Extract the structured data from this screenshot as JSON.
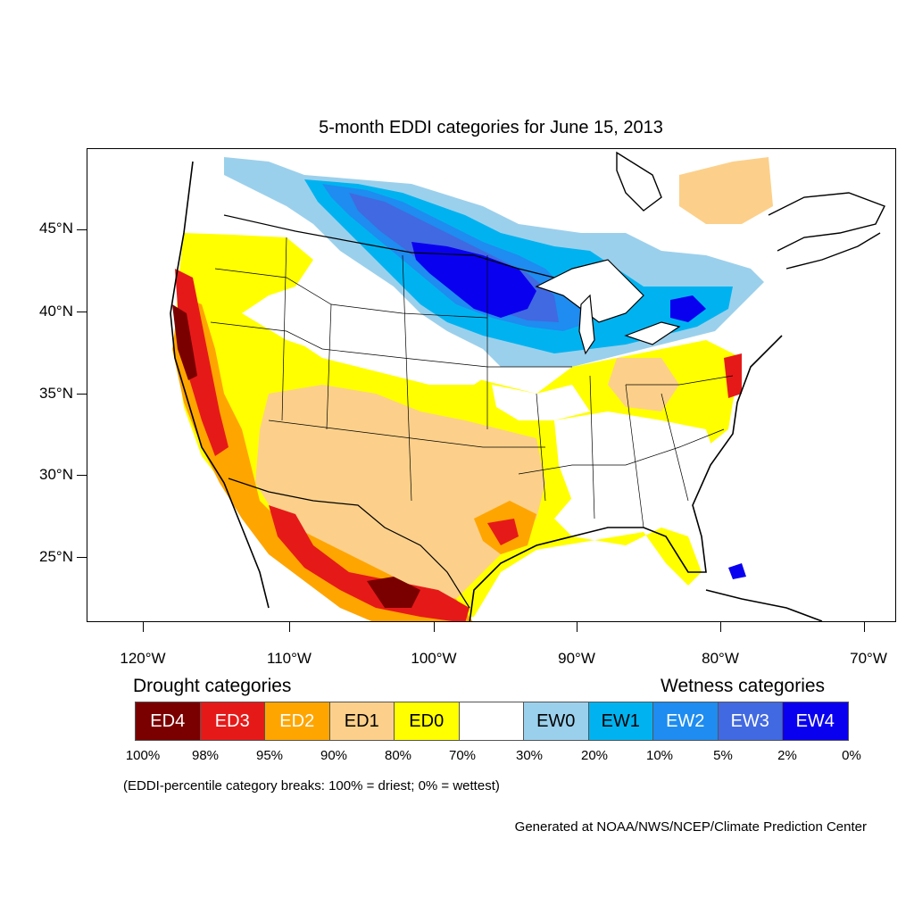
{
  "title": "5-month EDDI categories for June 15, 2013",
  "lat_labels": [
    "45°N",
    "40°N",
    "35°N",
    "30°N",
    "25°N"
  ],
  "lon_labels": [
    "120°W",
    "110°W",
    "100°W",
    "90°W",
    "80°W",
    "70°W"
  ],
  "legend": {
    "drought_heading": "Drought categories",
    "wetness_heading": "Wetness categories",
    "categories": [
      {
        "label": "ED4",
        "color": "#7a0000",
        "text_color": "#ffffff"
      },
      {
        "label": "ED3",
        "color": "#e61919",
        "text_color": "#ffffff"
      },
      {
        "label": "ED2",
        "color": "#ffa500",
        "text_color": "#ffffff"
      },
      {
        "label": "ED1",
        "color": "#fcd08a",
        "text_color": "#000000"
      },
      {
        "label": "ED0",
        "color": "#ffff00",
        "text_color": "#000000"
      },
      {
        "label": "",
        "color": "#ffffff",
        "text_color": "#000000"
      },
      {
        "label": "EW0",
        "color": "#9bd0ec",
        "text_color": "#000000"
      },
      {
        "label": "EW1",
        "color": "#00b3f0",
        "text_color": "#000000"
      },
      {
        "label": "EW2",
        "color": "#1e8cf0",
        "text_color": "#ffffff"
      },
      {
        "label": "EW3",
        "color": "#4169e1",
        "text_color": "#ffffff"
      },
      {
        "label": "EW4",
        "color": "#0a00f0",
        "text_color": "#ffffff"
      }
    ],
    "percentiles": [
      "100%",
      "98%",
      "95%",
      "90%",
      "80%",
      "70%",
      "30%",
      "20%",
      "10%",
      "5%",
      "2%",
      "0%"
    ]
  },
  "note": "(EDDI-percentile category breaks: 100% = driest; 0% = wettest)",
  "credit": "Generated at NOAA/NWS/NCEP/Climate Prediction Center"
}
